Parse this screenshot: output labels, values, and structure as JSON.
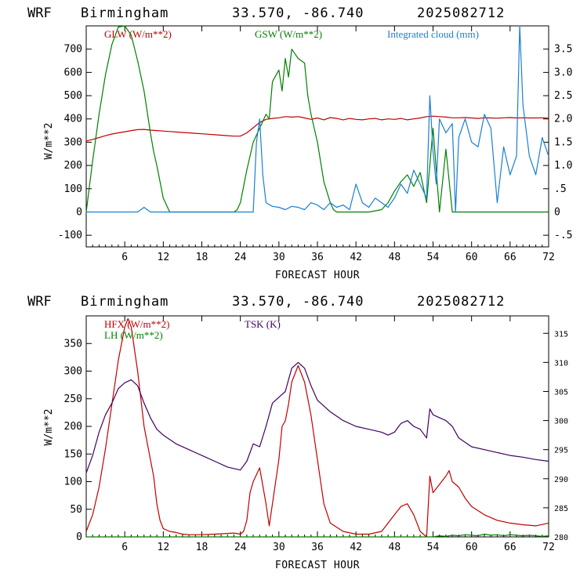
{
  "chart_data": [
    {
      "type": "line",
      "header": {
        "model": "WRF",
        "location": "Birmingham",
        "coords": "33.570, -86.740",
        "init": "2025082712"
      },
      "xlabel": "FORECAST HOUR",
      "ylabel": "W/m**2",
      "xlim": [
        0,
        72
      ],
      "xticks": [
        "6",
        "12",
        "18",
        "24",
        "30",
        "36",
        "42",
        "48",
        "54",
        "60",
        "66",
        "72"
      ],
      "ylim_left": [
        -150,
        800
      ],
      "yticks_left": [
        "-100",
        "0",
        "100",
        "200",
        "300",
        "400",
        "500",
        "600",
        "700"
      ],
      "ylim_right": [
        -0.75,
        4.0
      ],
      "yticks_right": [
        "-.5",
        "0",
        ".5",
        "1.0",
        "1.5",
        "2.0",
        "2.5",
        "3.0",
        "3.5"
      ],
      "legend_placement": "top",
      "series": [
        {
          "name": "GLW (W/m**2)",
          "color": "#c00000",
          "axis": "left",
          "x": [
            0,
            1,
            2,
            3,
            4,
            5,
            6,
            7,
            8,
            9,
            10,
            11,
            12,
            13,
            14,
            15,
            16,
            17,
            18,
            19,
            20,
            21,
            22,
            23,
            24,
            25,
            26,
            27,
            28,
            29,
            30,
            31,
            32,
            33,
            34,
            35,
            36,
            37,
            38,
            39,
            40,
            41,
            42,
            43,
            44,
            45,
            46,
            47,
            48,
            49,
            50,
            51,
            52,
            53,
            54,
            55,
            56,
            57,
            58,
            59,
            60,
            61,
            62,
            63,
            64,
            65,
            66,
            67,
            68,
            69,
            70,
            71,
            72
          ],
          "values": [
            305,
            312,
            320,
            328,
            335,
            340,
            345,
            350,
            354,
            355,
            352,
            350,
            348,
            346,
            344,
            342,
            340,
            338,
            336,
            334,
            332,
            330,
            328,
            326,
            326,
            340,
            362,
            385,
            398,
            402,
            405,
            410,
            408,
            410,
            404,
            398,
            404,
            396,
            406,
            402,
            396,
            402,
            398,
            396,
            400,
            402,
            396,
            400,
            398,
            402,
            396,
            400,
            404,
            410,
            412,
            410,
            408,
            405,
            405,
            406,
            404,
            402,
            405,
            404,
            403,
            405,
            406,
            404,
            405,
            404,
            404,
            405,
            403
          ]
        },
        {
          "name": "GSW (W/m**2)",
          "color": "#008000",
          "axis": "left",
          "x": [
            0,
            1,
            2,
            3,
            4,
            5,
            6,
            7,
            8,
            9,
            10,
            10.5,
            11,
            12,
            13,
            23,
            23.5,
            24,
            25,
            26,
            27,
            28,
            28.5,
            29,
            30,
            30.5,
            31,
            31.5,
            32,
            33,
            34,
            34.5,
            35,
            36,
            37,
            38,
            38.5,
            39,
            40,
            44,
            46,
            47,
            48,
            49,
            50,
            51,
            52,
            53,
            54,
            55,
            56,
            57,
            58,
            72
          ],
          "values": [
            0,
            220,
            420,
            590,
            720,
            795,
            800,
            760,
            650,
            520,
            340,
            260,
            200,
            60,
            0,
            0,
            10,
            40,
            180,
            300,
            360,
            420,
            400,
            560,
            610,
            520,
            660,
            580,
            700,
            660,
            640,
            500,
            420,
            300,
            130,
            40,
            10,
            0,
            0,
            0,
            10,
            40,
            90,
            130,
            160,
            110,
            170,
            40,
            360,
            0,
            270,
            0,
            0,
            0
          ]
        },
        {
          "name": "Integrated cloud (mm)",
          "color": "#1a7fd4",
          "axis": "right",
          "x": [
            0,
            8,
            9,
            9.5,
            10,
            26,
            26.5,
            27,
            27.5,
            28,
            29,
            30,
            31,
            32,
            33,
            34,
            35,
            36,
            37,
            38,
            39,
            40,
            41,
            42,
            43,
            44,
            45,
            46,
            47,
            48,
            49,
            50,
            51,
            52,
            53,
            53.5,
            54,
            54.5,
            55,
            56,
            57,
            57.5,
            58,
            59,
            60,
            61,
            62,
            63,
            64,
            65,
            66,
            67,
            67.5,
            68,
            69,
            70,
            71,
            72
          ],
          "values": [
            0,
            0,
            0.1,
            0.05,
            0,
            0,
            1.5,
            2.0,
            0.8,
            0.2,
            0.12,
            0.1,
            0.05,
            0.12,
            0.1,
            0.05,
            0.2,
            0.15,
            0.05,
            0.2,
            0.1,
            0.15,
            0.05,
            0.6,
            0.2,
            0.1,
            0.3,
            0.2,
            0.1,
            0.3,
            0.6,
            0.4,
            0.9,
            0.6,
            0.3,
            2.5,
            1.3,
            0.6,
            2.0,
            1.7,
            1.9,
            0.0,
            1.6,
            2.0,
            1.5,
            1.4,
            2.1,
            1.8,
            0.2,
            1.4,
            0.8,
            1.2,
            4.0,
            2.3,
            1.2,
            0.8,
            1.6,
            1.2
          ]
        }
      ]
    },
    {
      "type": "line",
      "header": {
        "model": "WRF",
        "location": "Birmingham",
        "coords": "33.570, -86.740",
        "init": "2025082712"
      },
      "xlabel": "FORECAST HOUR",
      "ylabel": "W/m**2",
      "xlim": [
        0,
        72
      ],
      "xticks": [
        "6",
        "12",
        "18",
        "24",
        "30",
        "36",
        "42",
        "48",
        "54",
        "60",
        "66",
        "72"
      ],
      "ylim_left": [
        0,
        400
      ],
      "yticks_left": [
        "0",
        "50",
        "100",
        "150",
        "200",
        "250",
        "300",
        "350"
      ],
      "ylim_right": [
        280,
        318
      ],
      "yticks_right": [
        "280",
        "285",
        "290",
        "295",
        "300",
        "305",
        "310",
        "315"
      ],
      "legend_placement": "top-left",
      "series": [
        {
          "name": "HFX (W/m**2)",
          "color": "#c00000",
          "axis": "left",
          "x": [
            0,
            1,
            2,
            3,
            4,
            5,
            6,
            6.5,
            7,
            8,
            9,
            10,
            10.5,
            11,
            11.5,
            12,
            13,
            14,
            15,
            16,
            18,
            20,
            23,
            24,
            24.5,
            25,
            25.5,
            26,
            27,
            28,
            28.5,
            29,
            30,
            30.5,
            31,
            31.5,
            32,
            33,
            34,
            35,
            36,
            37,
            38,
            40,
            42,
            44,
            46,
            47,
            48,
            49,
            50,
            51,
            52,
            53,
            53.5,
            54,
            55,
            56,
            56.5,
            57,
            58,
            59,
            60,
            62,
            64,
            66,
            68,
            70,
            72
          ],
          "values": [
            10,
            40,
            90,
            160,
            240,
            320,
            380,
            395,
            380,
            300,
            200,
            140,
            110,
            60,
            30,
            15,
            10,
            8,
            5,
            4,
            4,
            5,
            7,
            5,
            10,
            30,
            80,
            100,
            125,
            60,
            20,
            60,
            140,
            200,
            210,
            240,
            280,
            310,
            280,
            220,
            140,
            60,
            25,
            10,
            5,
            5,
            10,
            25,
            40,
            55,
            60,
            40,
            10,
            0,
            110,
            80,
            95,
            110,
            120,
            100,
            90,
            70,
            55,
            40,
            30,
            25,
            22,
            20,
            25
          ]
        },
        {
          "name": "LH (W/m**2)",
          "color": "#008000",
          "axis": "left",
          "x": [
            0,
            54,
            55,
            56,
            57,
            58,
            59,
            60,
            61,
            62,
            63,
            64,
            65,
            66,
            67,
            68,
            69,
            70,
            71,
            72
          ],
          "values": [
            0,
            0,
            2,
            1,
            3,
            2,
            4,
            3,
            2,
            5,
            3,
            4,
            2,
            4,
            3,
            2,
            3,
            2,
            1,
            2
          ]
        },
        {
          "name": "TSK (K)",
          "color": "#400060",
          "axis": "right",
          "x": [
            0,
            1,
            2,
            3,
            4,
            5,
            6,
            7,
            8,
            9,
            10,
            11,
            12,
            14,
            16,
            18,
            20,
            22,
            24,
            25,
            26,
            27,
            28,
            29,
            30,
            31,
            32,
            33,
            34,
            35,
            36,
            38,
            40,
            42,
            44,
            46,
            47,
            48,
            49,
            50,
            51,
            52,
            53,
            53.5,
            54,
            55,
            56,
            57,
            58,
            60,
            62,
            64,
            66,
            68,
            70,
            72
          ],
          "values": [
            291,
            294,
            298,
            301,
            303,
            305.5,
            306.5,
            307,
            306,
            303,
            300.5,
            298.5,
            297.5,
            296,
            295,
            294,
            293,
            292,
            291.5,
            293,
            296,
            295.5,
            299,
            303,
            304,
            305,
            309,
            310,
            309,
            306,
            303.5,
            301.5,
            300,
            299,
            298.5,
            298,
            297.5,
            298,
            299.5,
            300,
            299,
            298.5,
            297,
            302,
            301,
            300.5,
            300,
            299,
            297,
            295.5,
            295,
            294.5,
            294,
            293.7,
            293.3,
            293
          ]
        }
      ]
    }
  ]
}
